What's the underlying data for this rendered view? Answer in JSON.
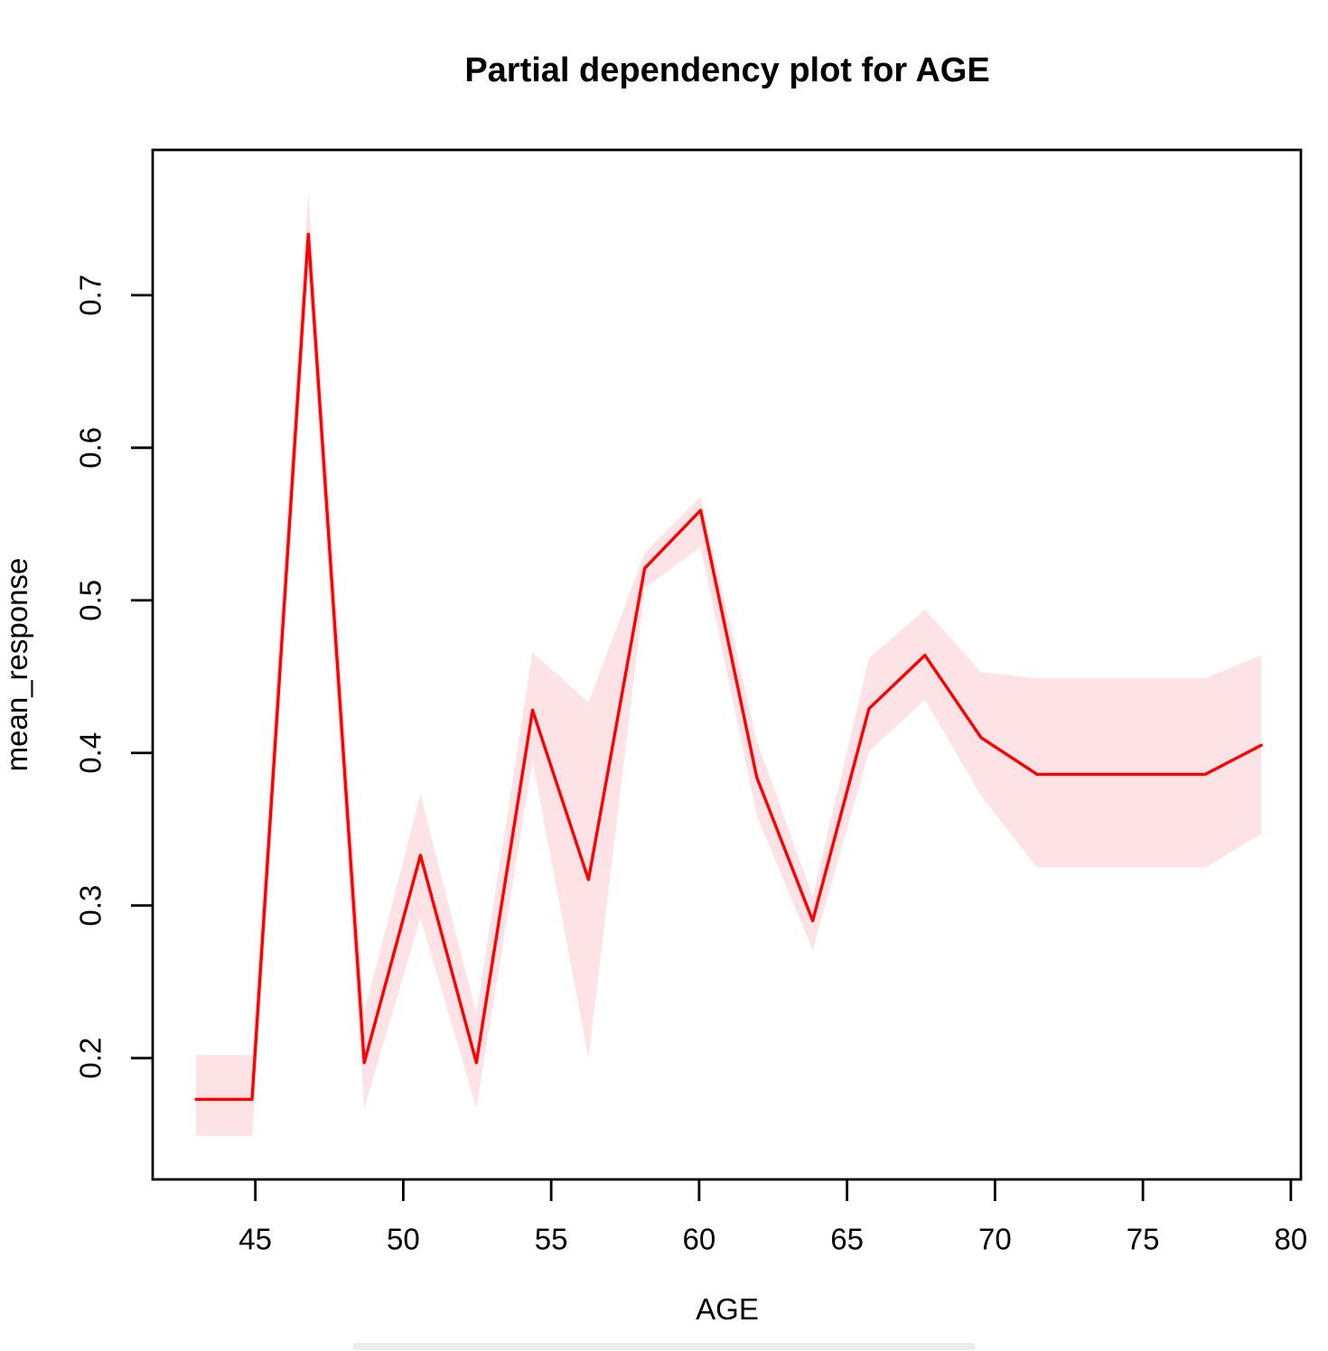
{
  "title": "Partial dependency plot for AGE",
  "chart_data": {
    "type": "line",
    "title": "Partial dependency plot for AGE",
    "xlabel": "AGE",
    "ylabel": "mean_response",
    "x": [
      43,
      44.89,
      46.79,
      48.68,
      50.58,
      52.47,
      54.37,
      56.26,
      58.16,
      60.05,
      61.95,
      63.84,
      65.74,
      67.63,
      69.53,
      71.42,
      73.32,
      75.21,
      77.11,
      79
    ],
    "series": [
      {
        "name": "mean_response",
        "values": [
          0.173,
          0.173,
          0.74,
          0.197,
          0.333,
          0.197,
          0.428,
          0.317,
          0.521,
          0.559,
          0.384,
          0.29,
          0.429,
          0.464,
          0.41,
          0.386,
          0.386,
          0.386,
          0.386,
          0.405
        ]
      }
    ],
    "band": {
      "name": "confidence-band",
      "lower": [
        0.149,
        0.149,
        0.715,
        0.167,
        0.292,
        0.167,
        0.395,
        0.2,
        0.508,
        0.535,
        0.359,
        0.271,
        0.401,
        0.435,
        0.372,
        0.325,
        0.325,
        0.325,
        0.325,
        0.347
      ],
      "upper": [
        0.202,
        0.202,
        0.768,
        0.23,
        0.373,
        0.229,
        0.466,
        0.433,
        0.531,
        0.568,
        0.408,
        0.306,
        0.462,
        0.494,
        0.453,
        0.449,
        0.449,
        0.449,
        0.449,
        0.464
      ]
    },
    "x_ticks": {
      "values": [
        45,
        50,
        55,
        60,
        65,
        70,
        75,
        80
      ],
      "labels": [
        "45",
        "50",
        "55",
        "60",
        "65",
        "70",
        "75",
        "80"
      ]
    },
    "y_ticks": {
      "values": [
        0.2,
        0.3,
        0.4,
        0.5,
        0.6,
        0.7
      ],
      "labels": [
        "0.2",
        "0.3",
        "0.4",
        "0.5",
        "0.6",
        "0.7"
      ]
    },
    "xlim": [
      41.53,
      80.34
    ],
    "ylim": [
      0.1205,
      0.7952
    ],
    "grid": false,
    "legend": "none",
    "line_color": "#FE0000",
    "band_color": "#FDE2E6",
    "axis_color": "#000000",
    "background": "#FFFFFF"
  }
}
